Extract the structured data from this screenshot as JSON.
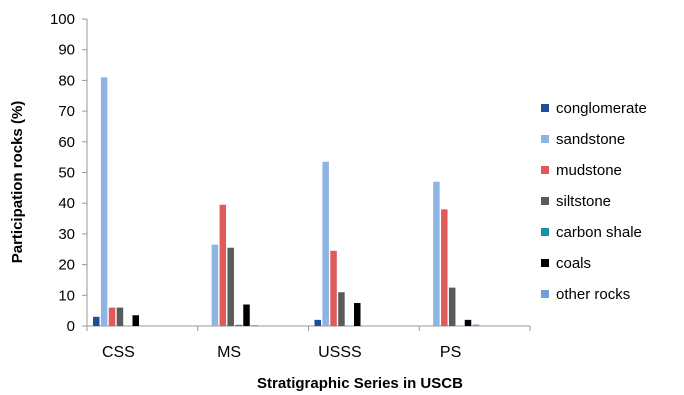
{
  "chart_data": {
    "type": "bar",
    "title": "",
    "xlabel": "Stratigraphic Series in USCB",
    "ylabel": "Participation rocks (%)",
    "ylim": [
      0,
      100
    ],
    "yticks": [
      "0",
      "10",
      "20",
      "30",
      "40",
      "50",
      "60",
      "70",
      "80",
      "90",
      "100"
    ],
    "grid": false,
    "legend_position": "right",
    "categories": [
      "CSS",
      "MS",
      "USSS",
      "PS"
    ],
    "series": [
      {
        "name": "conglomerate",
        "color": "#1f4e9c",
        "values": [
          3,
          0,
          2,
          0
        ]
      },
      {
        "name": "sandstone",
        "color": "#8db4e2",
        "values": [
          81,
          26.5,
          53.5,
          47
        ]
      },
      {
        "name": "mudstone",
        "color": "#e05a5a",
        "values": [
          6,
          39.5,
          24.5,
          38
        ]
      },
      {
        "name": "siltstone",
        "color": "#5a5a5a",
        "values": [
          6,
          25.5,
          11,
          12.5
        ]
      },
      {
        "name": "carbon shale",
        "color": "#1a8fa0",
        "values": [
          0,
          0.4,
          0,
          0
        ]
      },
      {
        "name": "coals",
        "color": "#000000",
        "values": [
          3.5,
          7,
          7.5,
          2
        ]
      },
      {
        "name": "other rocks",
        "color": "#6fa0d8",
        "values": [
          0,
          0.3,
          0,
          0.5
        ]
      }
    ]
  }
}
